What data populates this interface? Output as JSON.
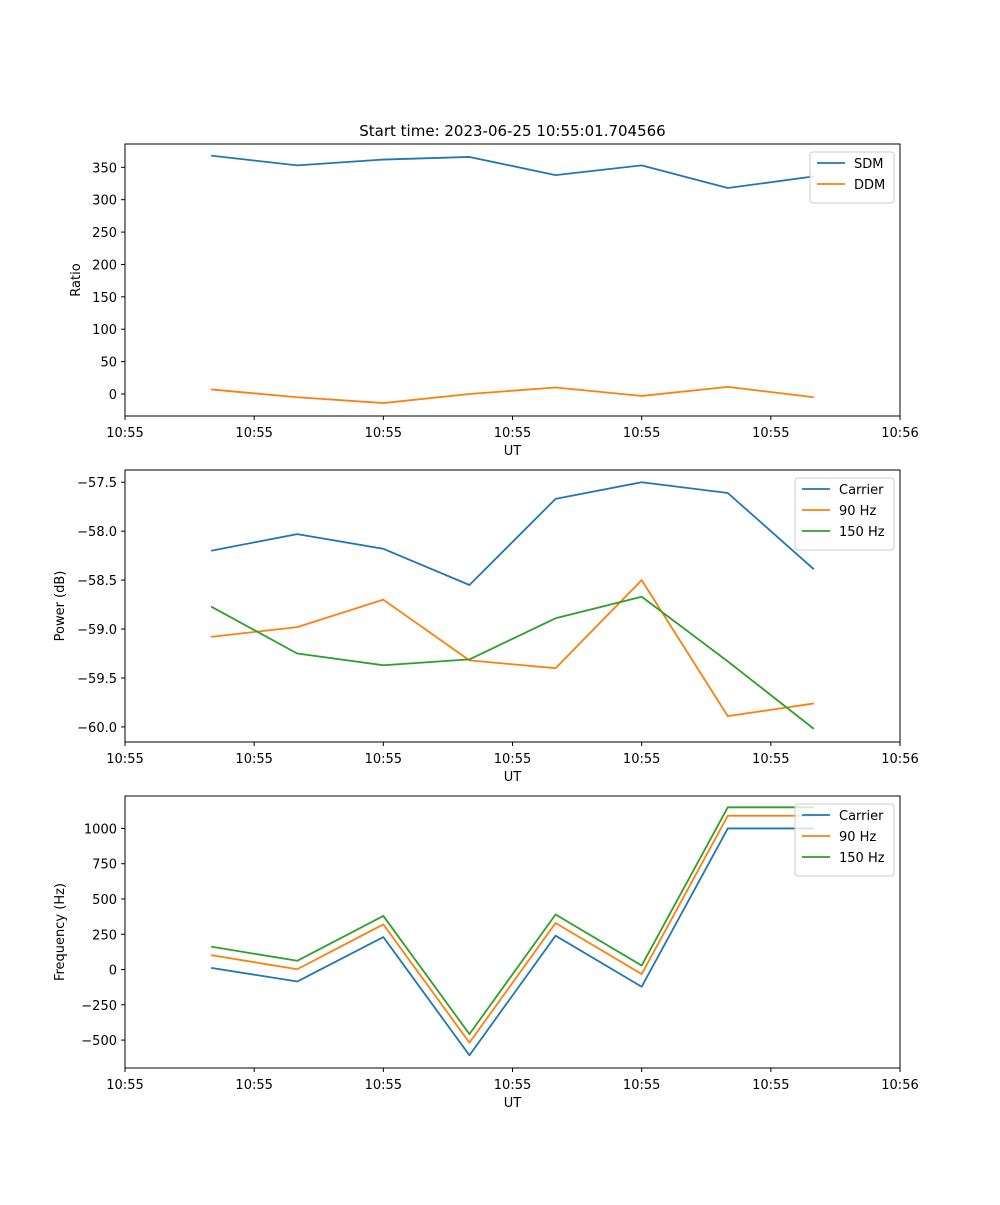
{
  "figure": {
    "title": "Start time: 2023-06-25 10:55:01.704566"
  },
  "colors": {
    "blue": "#1f77b4",
    "orange": "#ff7f0e",
    "green": "#2ca02c"
  },
  "chart_data": [
    {
      "type": "line",
      "title": "Start time: 2023-06-25 10:55:01.704566",
      "xlabel": "UT",
      "ylabel": "Ratio",
      "x": [
        1,
        2,
        3,
        4,
        5,
        6,
        7,
        8
      ],
      "xlim": [
        0,
        9
      ],
      "xticks": [
        0,
        1.5,
        3,
        4.5,
        6,
        7.5,
        9
      ],
      "xtick_labels": [
        "10:55",
        "10:55",
        "10:55",
        "10:55",
        "10:55",
        "10:55",
        "10:56"
      ],
      "ylim": [
        -34,
        386
      ],
      "yticks": [
        0,
        50,
        100,
        150,
        200,
        250,
        300,
        350
      ],
      "ytick_labels": [
        "0",
        "50",
        "100",
        "150",
        "200",
        "250",
        "300",
        "350"
      ],
      "legend": "top-right",
      "grid": false,
      "series": [
        {
          "name": "SDM",
          "color": "#1f77b4",
          "values": [
            368,
            353,
            362,
            366,
            338,
            353,
            318,
            336
          ]
        },
        {
          "name": "DDM",
          "color": "#ff7f0e",
          "values": [
            7,
            -5,
            -14,
            0,
            10,
            -3,
            11,
            -5
          ]
        }
      ]
    },
    {
      "type": "line",
      "title": "",
      "xlabel": "UT",
      "ylabel": "Power (dB)",
      "x": [
        1,
        2,
        3,
        4,
        5,
        6,
        7,
        8
      ],
      "xlim": [
        0,
        9
      ],
      "xticks": [
        0,
        1.5,
        3,
        4.5,
        6,
        7.5,
        9
      ],
      "xtick_labels": [
        "10:55",
        "10:55",
        "10:55",
        "10:55",
        "10:55",
        "10:55",
        "10:56"
      ],
      "ylim": [
        -60.154,
        -57.375
      ],
      "yticks": [
        -60.0,
        -59.5,
        -59.0,
        -58.5,
        -58.0,
        -57.5
      ],
      "ytick_labels": [
        "−60.0",
        "−59.5",
        "−59.0",
        "−58.5",
        "−58.0",
        "−57.5"
      ],
      "legend": "top-right",
      "grid": false,
      "series": [
        {
          "name": "Carrier",
          "color": "#1f77b4",
          "values": [
            -58.2,
            -58.03,
            -58.18,
            -58.55,
            -57.67,
            -57.5,
            -57.61,
            -58.39
          ]
        },
        {
          "name": "90 Hz",
          "color": "#ff7f0e",
          "values": [
            -59.08,
            -58.98,
            -58.7,
            -59.32,
            -59.4,
            -58.5,
            -59.89,
            -59.76
          ]
        },
        {
          "name": "150 Hz",
          "color": "#2ca02c",
          "values": [
            -58.77,
            -59.25,
            -59.37,
            -59.31,
            -58.89,
            -58.67,
            -59.33,
            -60.02
          ]
        }
      ]
    },
    {
      "type": "line",
      "title": "",
      "xlabel": "UT",
      "ylabel": "Frequency (Hz)",
      "x": [
        1,
        2,
        3,
        4,
        5,
        6,
        7,
        8
      ],
      "xlim": [
        0,
        9
      ],
      "xticks": [
        0,
        1.5,
        3,
        4.5,
        6,
        7.5,
        9
      ],
      "xtick_labels": [
        "10:55",
        "10:55",
        "10:55",
        "10:55",
        "10:55",
        "10:55",
        "10:56"
      ],
      "ylim": [
        -698,
        1230
      ],
      "yticks": [
        -500,
        -250,
        0,
        250,
        500,
        750,
        1000
      ],
      "ytick_labels": [
        "−500",
        "−250",
        "0",
        "250",
        "500",
        "750",
        "1000"
      ],
      "legend": "top-right",
      "grid": false,
      "series": [
        {
          "name": "Carrier",
          "color": "#1f77b4",
          "values": [
            12,
            -85,
            230,
            -608,
            240,
            -122,
            1000,
            1000
          ]
        },
        {
          "name": "90 Hz",
          "color": "#ff7f0e",
          "values": [
            102,
            2,
            320,
            -518,
            330,
            -32,
            1090,
            1090
          ]
        },
        {
          "name": "150 Hz",
          "color": "#2ca02c",
          "values": [
            162,
            62,
            380,
            -458,
            390,
            28,
            1150,
            1150
          ]
        }
      ]
    }
  ]
}
